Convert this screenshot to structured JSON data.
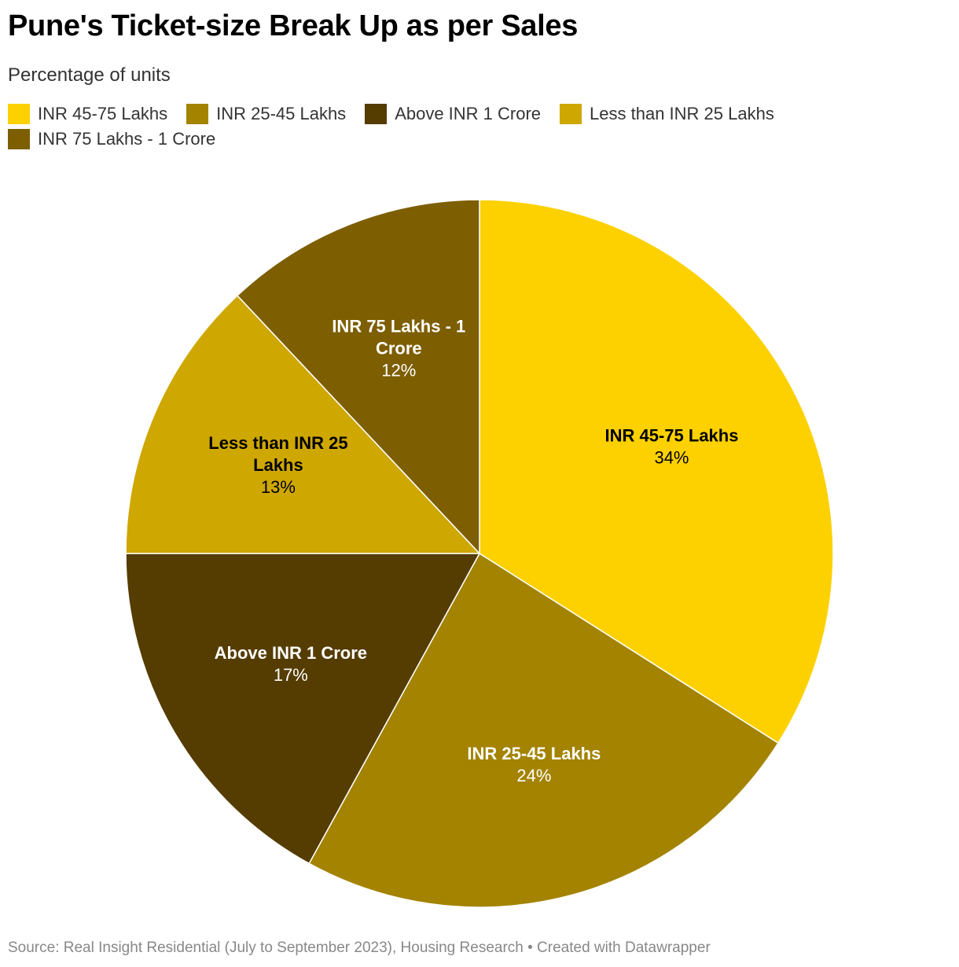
{
  "chart_data": {
    "type": "pie",
    "title": "Pune's Ticket-size Break Up as per Sales",
    "subtitle": "Percentage of units",
    "unit": "%",
    "slices": [
      {
        "label": "INR 45-75 Lakhs",
        "value": 34,
        "value_label": "34%",
        "color": "#fdd100",
        "label_color": "#000000",
        "label_lines": [
          "INR 45-75 Lakhs"
        ]
      },
      {
        "label": "INR 25-45 Lakhs",
        "value": 24,
        "value_label": "24%",
        "color": "#a38300",
        "label_color": "#ffffff",
        "label_lines": [
          "INR 25-45 Lakhs"
        ]
      },
      {
        "label": "Above INR 1 Crore",
        "value": 17,
        "value_label": "17%",
        "color": "#553c00",
        "label_color": "#ffffff",
        "label_lines": [
          "Above INR 1 Crore"
        ]
      },
      {
        "label": "Less than INR 25 Lakhs",
        "value": 13,
        "value_label": "13%",
        "color": "#cea700",
        "label_color": "#000000",
        "label_lines": [
          "Less than INR 25",
          "Lakhs"
        ]
      },
      {
        "label": "INR 75 Lakhs - 1 Crore",
        "value": 12,
        "value_label": "12%",
        "color": "#7d5e00",
        "label_color": "#ffffff",
        "label_lines": [
          "INR 75 Lakhs - 1",
          "Crore"
        ]
      }
    ],
    "legend_position": "top-left",
    "source": "Source: Real Insight Residential (July to September 2023), Housing Research • Created with Datawrapper"
  }
}
